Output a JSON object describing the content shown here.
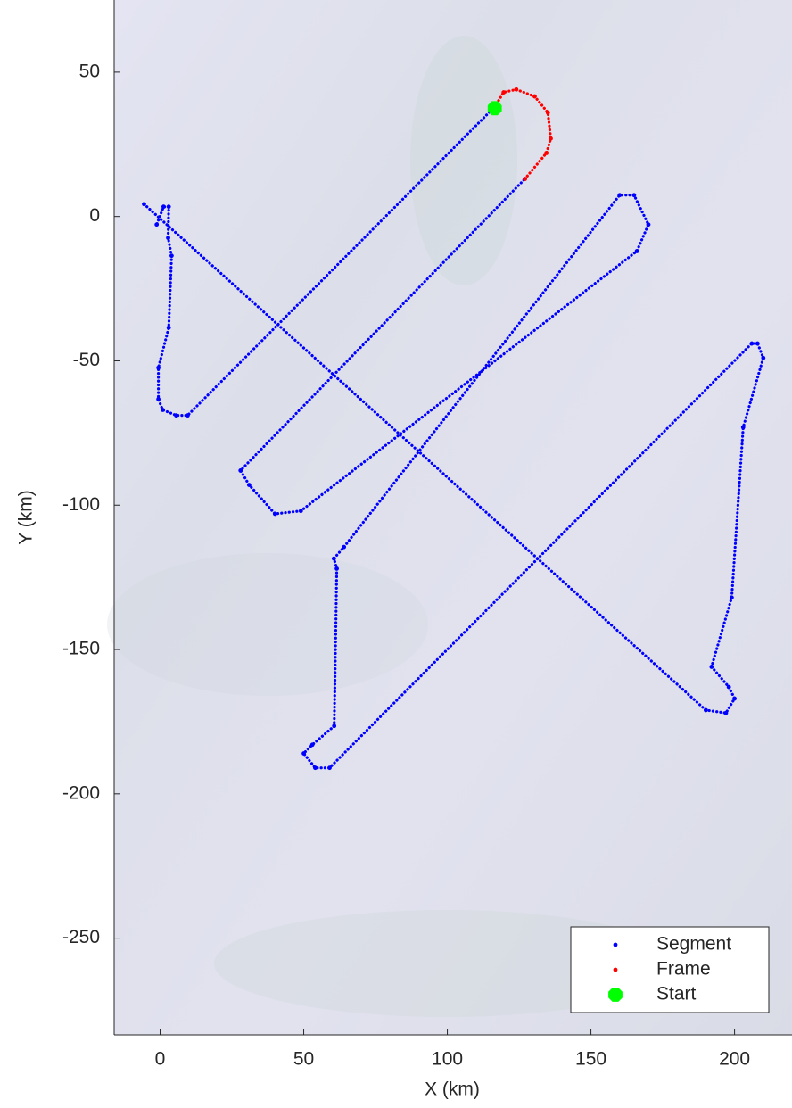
{
  "chart_data": {
    "type": "line",
    "x_label": "X (km)",
    "y_label": "Y (km)",
    "xlim": [
      -16,
      220
    ],
    "ylim": [
      -283.5,
      75
    ],
    "xticks": [
      0,
      50,
      100,
      150,
      200
    ],
    "yticks": [
      50,
      0,
      -50,
      -100,
      -150,
      -200,
      -250
    ],
    "legend": "lower right",
    "series": [
      {
        "name": "Segment",
        "color": "#0000ff",
        "marker": "dot",
        "x": [
          116.5,
          9.6,
          5.6,
          0.9,
          -0.6,
          -0.6,
          3,
          4,
          2.8,
          3,
          1.2,
          -1.2,
          null,
          -5.6,
          190,
          197,
          200,
          198,
          192,
          199,
          203,
          210,
          208,
          206,
          59,
          54,
          50,
          53,
          60.6,
          61.5,
          60.5,
          64,
          160,
          165,
          170,
          166,
          49,
          40,
          31,
          28,
          127
        ],
        "values": [
          38,
          -68.9,
          -68.9,
          -67,
          -63.3,
          -52.4,
          -38.5,
          -13.6,
          -7.4,
          3.4,
          3.4,
          -2.8,
          null,
          4.3,
          -171,
          -172,
          -167,
          -163,
          -156,
          -132,
          -73,
          -49,
          -44,
          -44,
          -191,
          -191,
          -186,
          -183,
          -176.5,
          -122,
          -118.5,
          -114.5,
          7.4,
          7.4,
          -2.8,
          -12,
          -102,
          -103,
          -93,
          -88,
          13
        ]
      },
      {
        "name": "Frame",
        "color": "#ff0000",
        "marker": "dot",
        "x": [
          127,
          134.5,
          136,
          135,
          130.4,
          124,
          119.6,
          116.5
        ],
        "values": [
          13,
          22,
          27,
          36,
          41.6,
          44,
          43,
          38
        ]
      },
      {
        "name": "Start",
        "color": "#00ff00",
        "marker": "octagon",
        "x": [
          116.5
        ],
        "values": [
          37.5
        ]
      }
    ]
  }
}
